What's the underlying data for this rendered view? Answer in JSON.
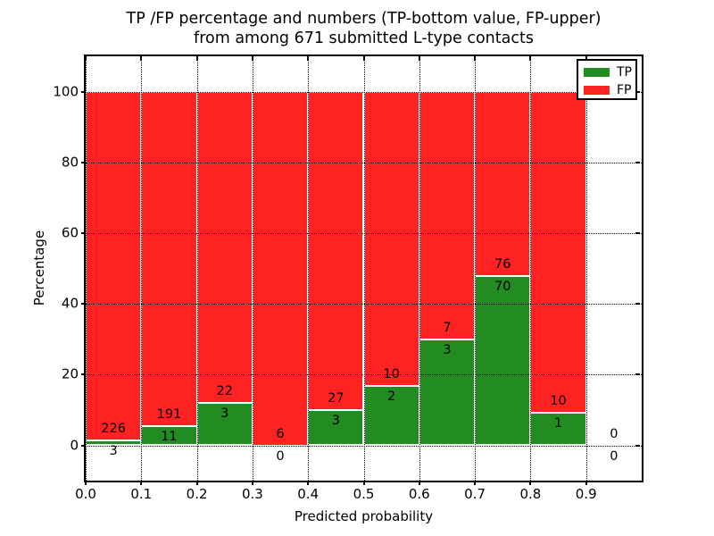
{
  "figure": {
    "title_line1": "TP /FP percentage and numbers (TP-bottom value, FP-upper)",
    "title_line2": "from among 671 submitted L-type contacts",
    "xlabel": "Predicted probability",
    "ylabel": "Percentage"
  },
  "legend": {
    "position": "upper-right",
    "items": [
      {
        "label": "TP",
        "color": "#228b22"
      },
      {
        "label": "FP",
        "color": "#ff2222"
      }
    ]
  },
  "chart_data": {
    "type": "bar",
    "subtype": "stacked-percentage",
    "title": "TP /FP percentage and numbers (TP-bottom value, FP-upper)\nfrom among 671 submitted L-type contacts",
    "xlabel": "Predicted probability",
    "ylabel": "Percentage",
    "xlim": [
      0.0,
      1.0
    ],
    "ylim": [
      -10,
      110
    ],
    "xticks": [
      "0.0",
      "0.1",
      "0.2",
      "0.3",
      "0.4",
      "0.5",
      "0.6",
      "0.7",
      "0.8",
      "0.9"
    ],
    "yticks": [
      0,
      20,
      40,
      60,
      80,
      100
    ],
    "grid": "dotted-black-both-axes",
    "bar_edge_color": "#ffffff",
    "total_submitted": 671,
    "bin_width": 0.1,
    "bin_starts": [
      0.0,
      0.1,
      0.2,
      0.3,
      0.4,
      0.5,
      0.6,
      0.7,
      0.8,
      0.9
    ],
    "categories": [
      "0.0-0.1",
      "0.1-0.2",
      "0.2-0.3",
      "0.3-0.4",
      "0.4-0.5",
      "0.5-0.6",
      "0.6-0.7",
      "0.7-0.8",
      "0.8-0.9",
      "0.9-1.0"
    ],
    "series": [
      {
        "name": "TP",
        "color": "#228b22",
        "counts": [
          3,
          11,
          3,
          0,
          3,
          2,
          3,
          70,
          1,
          0
        ],
        "percent": [
          1.3,
          5.4,
          12.0,
          0.0,
          10.0,
          16.7,
          30.0,
          47.9,
          9.1,
          0.0
        ]
      },
      {
        "name": "FP",
        "color": "#ff2222",
        "counts": [
          226,
          191,
          22,
          6,
          27,
          10,
          7,
          76,
          10,
          0
        ],
        "percent": [
          98.7,
          94.6,
          88.0,
          100.0,
          90.0,
          83.3,
          70.0,
          52.1,
          90.9,
          0.0
        ]
      }
    ],
    "annotation_rule": "FP count above green top, TP count below green top, per bar"
  }
}
